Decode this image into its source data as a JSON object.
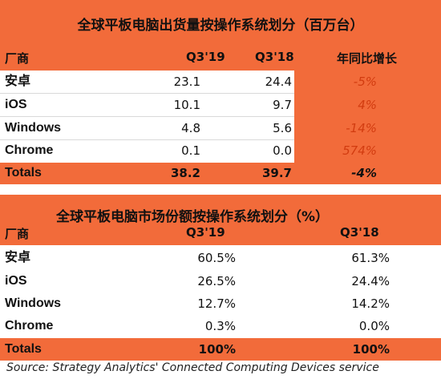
{
  "table1": {
    "title": "全球平板电脑出货量按操作系统划分（百万台）",
    "headers": {
      "vendor": "厂商",
      "q3_19": "Q3'19",
      "q3_18": "Q3'18",
      "yoy": "年同比增长"
    },
    "rows": [
      {
        "name": "安卓",
        "q3_19": "23.1",
        "q3_18": "24.4",
        "yoy": "-5%"
      },
      {
        "name": "iOS",
        "q3_19": "10.1",
        "q3_18": "9.7",
        "yoy": "4%"
      },
      {
        "name": "Windows",
        "q3_19": "4.8",
        "q3_18": "5.6",
        "yoy": "-14%"
      },
      {
        "name": "Chrome",
        "q3_19": "0.1",
        "q3_18": "0.0",
        "yoy": "574%"
      }
    ],
    "totals": {
      "name": "Totals",
      "q3_19": "38.2",
      "q3_18": "39.7",
      "yoy": "-4%"
    }
  },
  "table2": {
    "title": "全球平板电脑市场份额按操作系统划分（%）",
    "headers": {
      "vendor": "厂商",
      "q3_19": "Q3'19",
      "q3_18": "Q3'18"
    },
    "rows": [
      {
        "name": "安卓",
        "q3_19": "60.5%",
        "q3_18": "61.3%"
      },
      {
        "name": "iOS",
        "q3_19": "26.5%",
        "q3_18": "24.4%"
      },
      {
        "name": "Windows",
        "q3_19": "12.7%",
        "q3_18": "14.2%"
      },
      {
        "name": "Chrome",
        "q3_19": "0.3%",
        "q3_18": "0.0%"
      }
    ],
    "totals": {
      "name": "Totals",
      "q3_19": "100%",
      "q3_18": "100%"
    }
  },
  "source": "Source: Strategy Analytics' Connected Computing Devices service",
  "colors": {
    "accent": "#f26b3a",
    "negative": "#d23c10"
  }
}
